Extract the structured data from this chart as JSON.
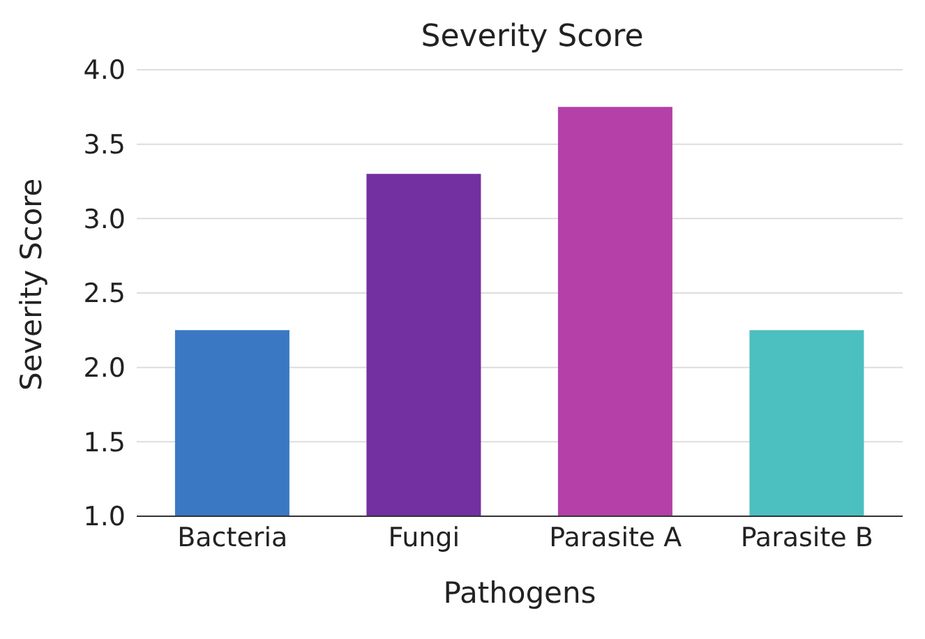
{
  "chart_data": {
    "type": "bar",
    "title": "Severity Score",
    "xlabel": "Pathogens",
    "ylabel": "Severity Score",
    "categories": [
      "Bacteria",
      "Fungi",
      "Parasite A",
      "Parasite B"
    ],
    "values": [
      2.25,
      3.3,
      3.75,
      2.25
    ],
    "colors": [
      "#3a78c4",
      "#7230a0",
      "#b440a8",
      "#4cbfc0"
    ],
    "ylim": [
      1.0,
      4.0
    ],
    "yticks": [
      {
        "value": 1,
        "label": "1.0"
      },
      {
        "value": 1.5,
        "label": "1.5"
      },
      {
        "value": 2,
        "label": "2.0"
      },
      {
        "value": 2.5,
        "label": "2.5"
      },
      {
        "value": 3,
        "label": "3.0"
      },
      {
        "value": 3.5,
        "label": "3.5"
      },
      {
        "value": 4,
        "label": "4.0"
      }
    ],
    "grid": "y",
    "legend": false
  }
}
